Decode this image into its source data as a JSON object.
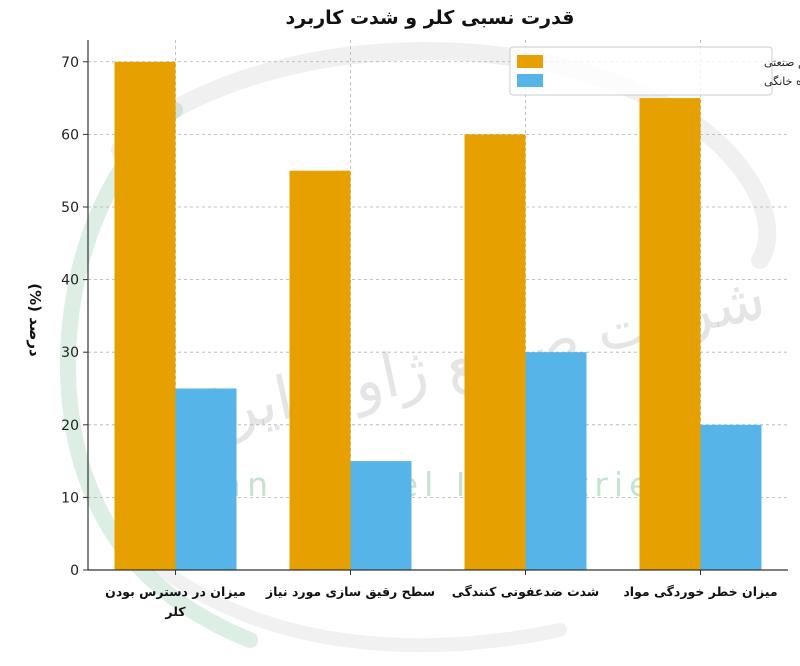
{
  "chart_data": {
    "type": "bar",
    "title": "قدرت نسبی کلر و شدت کاربرد",
    "xlabel": "",
    "ylabel": "درصد (%)",
    "ylim": [
      0,
      73
    ],
    "yticks": [
      0,
      10,
      20,
      30,
      40,
      50,
      60,
      70
    ],
    "grid": true,
    "legend_position": "top-right",
    "categories": [
      [
        "میزان در دسترس بودن",
        "کلر"
      ],
      [
        "سطح رقیق سازی مورد نیاز"
      ],
      [
        "شدت ضدعفونی کنندگی"
      ],
      [
        "میزان خطر خوردگی مواد"
      ]
    ],
    "series": [
      {
        "name": "هیپوکلریت سدیم صنعتی",
        "color": "#e6a000",
        "values": [
          70,
          55,
          60,
          65
        ]
      },
      {
        "name": "سفید کننده خانگی",
        "color": "#56b4e9",
        "values": [
          25,
          15,
          30,
          20
        ]
      }
    ]
  },
  "watermark": {
    "latin": "Iran Zhavel Industries Co",
    "persian": "شرکت صنایع ژاول ایران"
  }
}
